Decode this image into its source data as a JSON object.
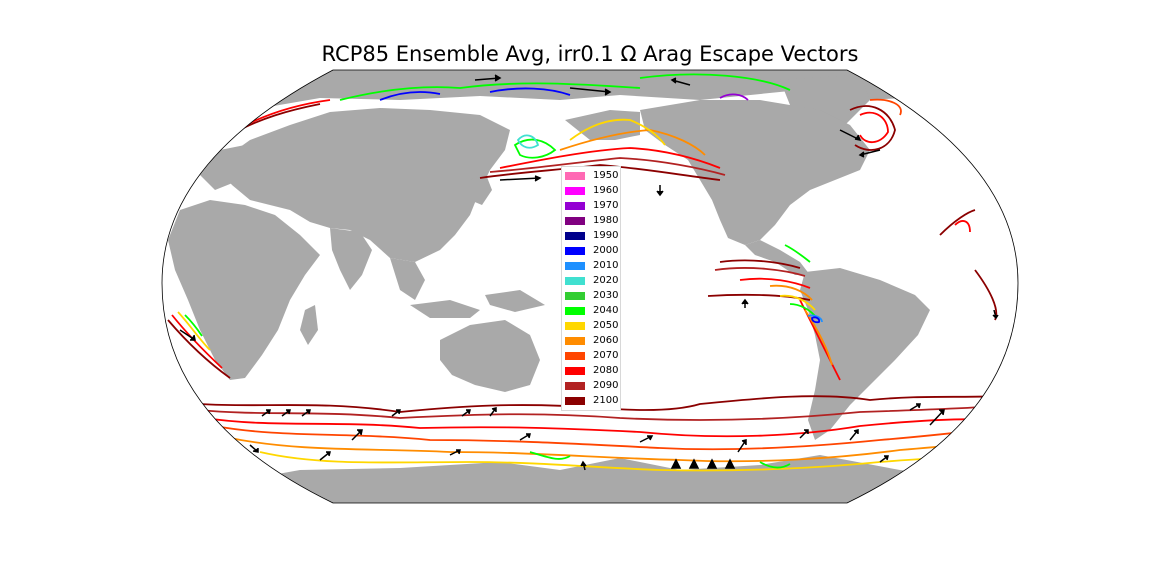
{
  "title": "RCP85 Ensemble Avg, irr0.1 Ω Arag Escape Vectors",
  "colors": {
    "land": "#a9a9a9",
    "ocean": "#ffffff",
    "arrow": "#000000"
  },
  "legend": [
    {
      "year": "1950",
      "color": "#ff69b4"
    },
    {
      "year": "1960",
      "color": "#ff00ff"
    },
    {
      "year": "1970",
      "color": "#9400d3"
    },
    {
      "year": "1980",
      "color": "#800080"
    },
    {
      "year": "1990",
      "color": "#00008b"
    },
    {
      "year": "2000",
      "color": "#0000ff"
    },
    {
      "year": "2010",
      "color": "#1e90ff"
    },
    {
      "year": "2020",
      "color": "#40e0d0"
    },
    {
      "year": "2030",
      "color": "#32cd32"
    },
    {
      "year": "2040",
      "color": "#00ff00"
    },
    {
      "year": "2050",
      "color": "#ffd700"
    },
    {
      "year": "2060",
      "color": "#ff8c00"
    },
    {
      "year": "2070",
      "color": "#ff4500"
    },
    {
      "year": "2080",
      "color": "#ff0000"
    },
    {
      "year": "2090",
      "color": "#b22222"
    },
    {
      "year": "2100",
      "color": "#8b0000"
    }
  ]
}
